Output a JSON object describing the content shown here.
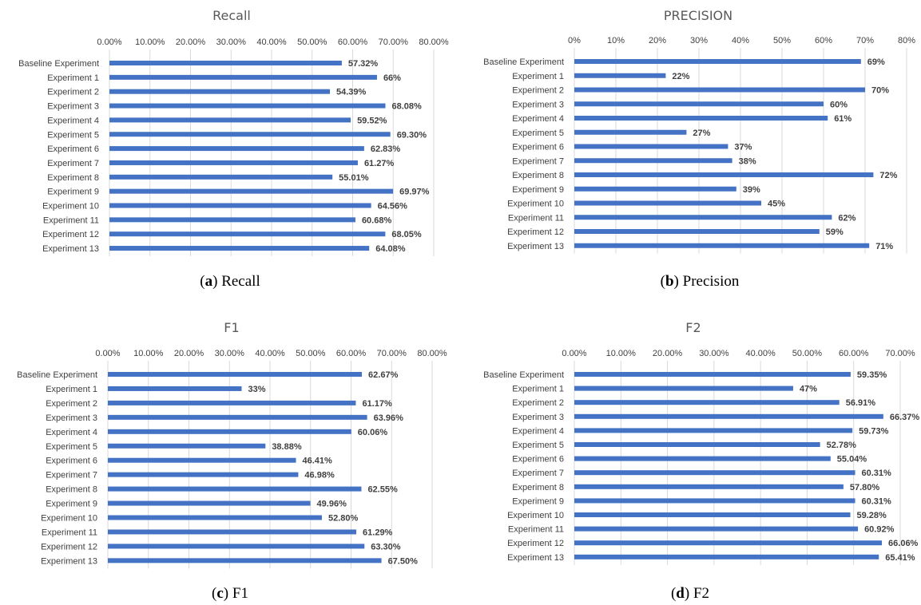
{
  "captions": [
    {
      "letter": "a",
      "text": "Recall"
    },
    {
      "letter": "b",
      "text": "Precision"
    },
    {
      "letter": "c",
      "text": "F1"
    },
    {
      "letter": "d",
      "text": "F2"
    }
  ],
  "chart_data": [
    {
      "type": "bar",
      "orientation": "horizontal",
      "title": "Recall",
      "categories": [
        "Baseline Experiment",
        "Experiment 1",
        "Experiment 2",
        "Experiment 3",
        "Experiment 4",
        "Experiment 5",
        "Experiment 6",
        "Experiment 7",
        "Experiment 8",
        "Experiment 9",
        "Experiment 10",
        "Experiment 11",
        "Experiment 12",
        "Experiment 13"
      ],
      "values": [
        57.32,
        66,
        54.39,
        68.08,
        59.52,
        69.3,
        62.83,
        61.27,
        55.01,
        69.97,
        64.56,
        60.68,
        68.05,
        64.08
      ],
      "data_labels": [
        "57.32%",
        "66%",
        "54.39%",
        "68.08%",
        "59.52%",
        "69.30%",
        "62.83%",
        "61.27%",
        "55.01%",
        "69.97%",
        "64.56%",
        "60.68%",
        "68.05%",
        "64.08%"
      ],
      "xlim": [
        0,
        80
      ],
      "ticks": [
        0,
        10,
        20,
        30,
        40,
        50,
        60,
        70,
        80
      ],
      "tick_labels": [
        "0.00%",
        "10.00%",
        "20.00%",
        "30.00%",
        "40.00%",
        "50.00%",
        "60.00%",
        "70.00%",
        "80.00%"
      ],
      "axis_position": "top",
      "grid": true,
      "color": "#4472c4"
    },
    {
      "type": "bar",
      "orientation": "horizontal",
      "title": "PRECISION",
      "categories": [
        "Baseline Experiment",
        "Experiment 1",
        "Experiment 2",
        "Experiment 3",
        "Experiment 4",
        "Experiment 5",
        "Experiment 6",
        "Experiment 7",
        "Experiment 8",
        "Experiment 9",
        "Experiment 10",
        "Experiment 11",
        "Experiment 12",
        "Experiment 13"
      ],
      "values": [
        69,
        22,
        70,
        60,
        61,
        27,
        37,
        38,
        72,
        39,
        45,
        62,
        59,
        71
      ],
      "data_labels": [
        "69%",
        "22%",
        "70%",
        "60%",
        "61%",
        "27%",
        "37%",
        "38%",
        "72%",
        "39%",
        "45%",
        "62%",
        "59%",
        "71%"
      ],
      "xlim": [
        0,
        80
      ],
      "ticks": [
        0,
        10,
        20,
        30,
        40,
        50,
        60,
        70,
        80
      ],
      "tick_labels": [
        "0%",
        "10%",
        "20%",
        "30%",
        "40%",
        "50%",
        "60%",
        "70%",
        "80%"
      ],
      "axis_position": "top",
      "grid": true,
      "color": "#4472c4"
    },
    {
      "type": "bar",
      "orientation": "horizontal",
      "title": "F1",
      "categories": [
        "Baseline Experiment",
        "Experiment 1",
        "Experiment 2",
        "Experiment 3",
        "Experiment 4",
        "Experiment 5",
        "Experiment 6",
        "Experiment 7",
        "Experiment 8",
        "Experiment 9",
        "Experiment 10",
        "Experiment 11",
        "Experiment 12",
        "Experiment 13"
      ],
      "values": [
        62.67,
        33,
        61.17,
        63.96,
        60.06,
        38.88,
        46.41,
        46.98,
        62.55,
        49.96,
        52.8,
        61.29,
        63.3,
        67.5
      ],
      "data_labels": [
        "62.67%",
        "33%",
        "61.17%",
        "63.96%",
        "60.06%",
        "38.88%",
        "46.41%",
        "46.98%",
        "62.55%",
        "49.96%",
        "52.80%",
        "61.29%",
        "63.30%",
        "67.50%"
      ],
      "xlim": [
        0,
        80
      ],
      "ticks": [
        0,
        10,
        20,
        30,
        40,
        50,
        60,
        70,
        80
      ],
      "tick_labels": [
        "0.00%",
        "10.00%",
        "20.00%",
        "30.00%",
        "40.00%",
        "50.00%",
        "60.00%",
        "70.00%",
        "80.00%"
      ],
      "axis_position": "top",
      "grid": true,
      "color": "#4472c4"
    },
    {
      "type": "bar",
      "orientation": "horizontal",
      "title": "F2",
      "categories": [
        "Baseline Experiment",
        "Experiment 1",
        "Experiment 2",
        "Experiment 3",
        "Experiment 4",
        "Experiment 5",
        "Experiment 6",
        "Experiment 7",
        "Experiment 8",
        "Experiment 9",
        "Experiment 10",
        "Experiment 11",
        "Experiment 12",
        "Experiment 13"
      ],
      "values": [
        59.35,
        47,
        56.91,
        66.37,
        59.73,
        52.78,
        55.04,
        60.31,
        57.8,
        60.31,
        59.28,
        60.92,
        66.06,
        65.41
      ],
      "data_labels": [
        "59.35%",
        "47%",
        "56.91%",
        "66.37%",
        "59.73%",
        "52.78%",
        "55.04%",
        "60.31%",
        "57.80%",
        "60.31%",
        "59.28%",
        "60.92%",
        "66.06%",
        "65.41%"
      ],
      "xlim": [
        0,
        70
      ],
      "ticks": [
        0,
        10,
        20,
        30,
        40,
        50,
        60,
        70
      ],
      "tick_labels": [
        "0.00%",
        "10.00%",
        "20.00%",
        "30.00%",
        "40.00%",
        "50.00%",
        "60.00%",
        "70.00%"
      ],
      "axis_position": "top",
      "grid": true,
      "color": "#4472c4"
    }
  ]
}
